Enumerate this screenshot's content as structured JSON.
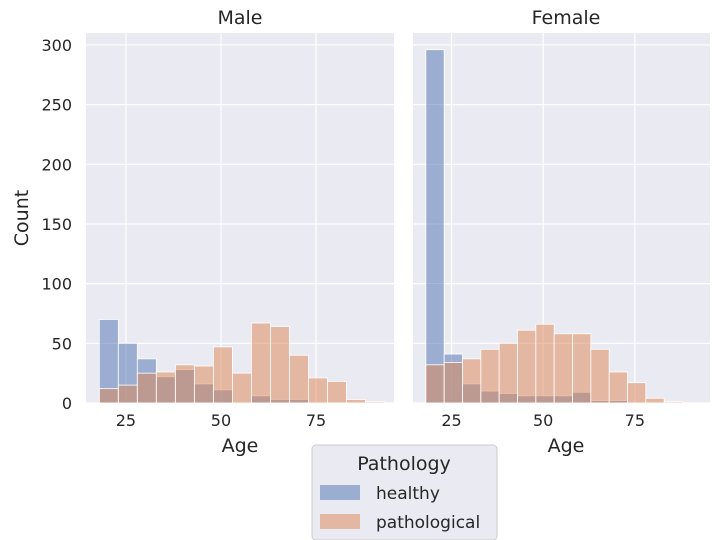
{
  "chart_data": {
    "type": "bar",
    "subtype": "faceted overlapping histogram",
    "x_edges": [
      18,
      23,
      28,
      33,
      38,
      43,
      48,
      53,
      58,
      63,
      68,
      73,
      78,
      83,
      88,
      93
    ],
    "xlabel": "Age",
    "ylabel": "Count",
    "ylim": [
      0,
      310
    ],
    "xlim": [
      14.5,
      95.5
    ],
    "x_ticks": [
      25,
      50,
      75
    ],
    "y_ticks": [
      0,
      50,
      100,
      150,
      200,
      250,
      300
    ],
    "x_tick_labels": [
      "25",
      "50",
      "75"
    ],
    "y_tick_labels": [
      "0",
      "50",
      "100",
      "150",
      "200",
      "250",
      "300"
    ],
    "grid": true,
    "legend": {
      "title": "Pathology",
      "placement": "bottom-center",
      "entries": [
        "healthy",
        "pathological"
      ]
    },
    "colors": {
      "healthy": "#4c72b0",
      "pathological": "#dd8452",
      "background": "#eaeaf2",
      "grid": "#ffffff"
    },
    "facets": [
      {
        "title": "Male",
        "series": [
          {
            "name": "healthy",
            "values": [
              70,
              50,
              37,
              22,
              28,
              16,
              11,
              0,
              6,
              3,
              3,
              0,
              0,
              0,
              0
            ]
          },
          {
            "name": "pathological",
            "values": [
              12,
              15,
              25,
              26,
              32,
              31,
              47,
              25,
              67,
              64,
              40,
              21,
              18,
              3,
              1
            ]
          }
        ]
      },
      {
        "title": "Female",
        "series": [
          {
            "name": "healthy",
            "values": [
              296,
              41,
              16,
              10,
              8,
              6,
              6,
              6,
              9,
              2,
              2,
              0,
              0,
              0,
              0
            ]
          },
          {
            "name": "pathological",
            "values": [
              32,
              34,
              37,
              45,
              50,
              61,
              66,
              58,
              58,
              45,
              26,
              17,
              4,
              1,
              0
            ]
          }
        ]
      }
    ]
  }
}
